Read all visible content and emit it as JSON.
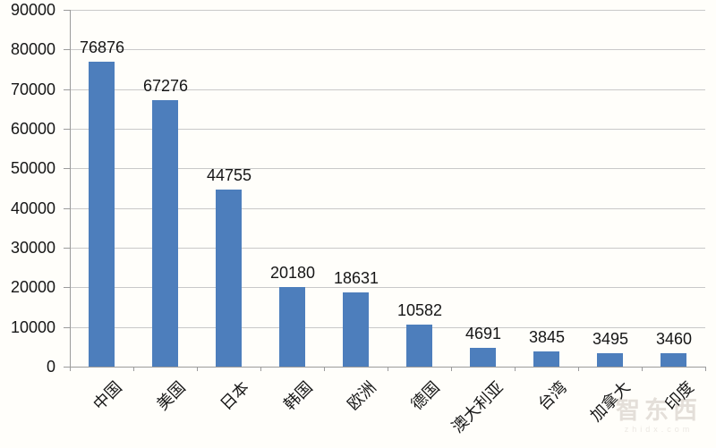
{
  "chart_data": {
    "type": "bar",
    "title": "",
    "xlabel": "",
    "ylabel": "",
    "categories": [
      "中国",
      "美国",
      "日本",
      "韩国",
      "欧洲",
      "德国",
      "澳大利亚",
      "台湾",
      "加拿大",
      "印度"
    ],
    "values": [
      76876,
      67276,
      44755,
      20180,
      18631,
      10582,
      4691,
      3845,
      3495,
      3460
    ],
    "data_labels": [
      "76876",
      "67276",
      "44755",
      "20180",
      "18631",
      "10582",
      "4691",
      "3845",
      "3495",
      "3460"
    ],
    "ylim": [
      0,
      90000
    ],
    "ytick_interval": 10000,
    "ytick_labels": [
      "0",
      "10000",
      "20000",
      "30000",
      "40000",
      "50000",
      "60000",
      "70000",
      "80000",
      "90000"
    ],
    "grid": true,
    "legend": false,
    "colors": {
      "bar": "#4D7EBC",
      "gridline": "#C9C9C9",
      "axis": "#9B9B9B",
      "text": "#161616",
      "background": "#FFFEFA"
    }
  },
  "watermark": {
    "logo": "智东西",
    "subtext": "zhidx.com",
    "logo_color": "#E4DFD9",
    "subtext_color": "#ECE8E3"
  }
}
